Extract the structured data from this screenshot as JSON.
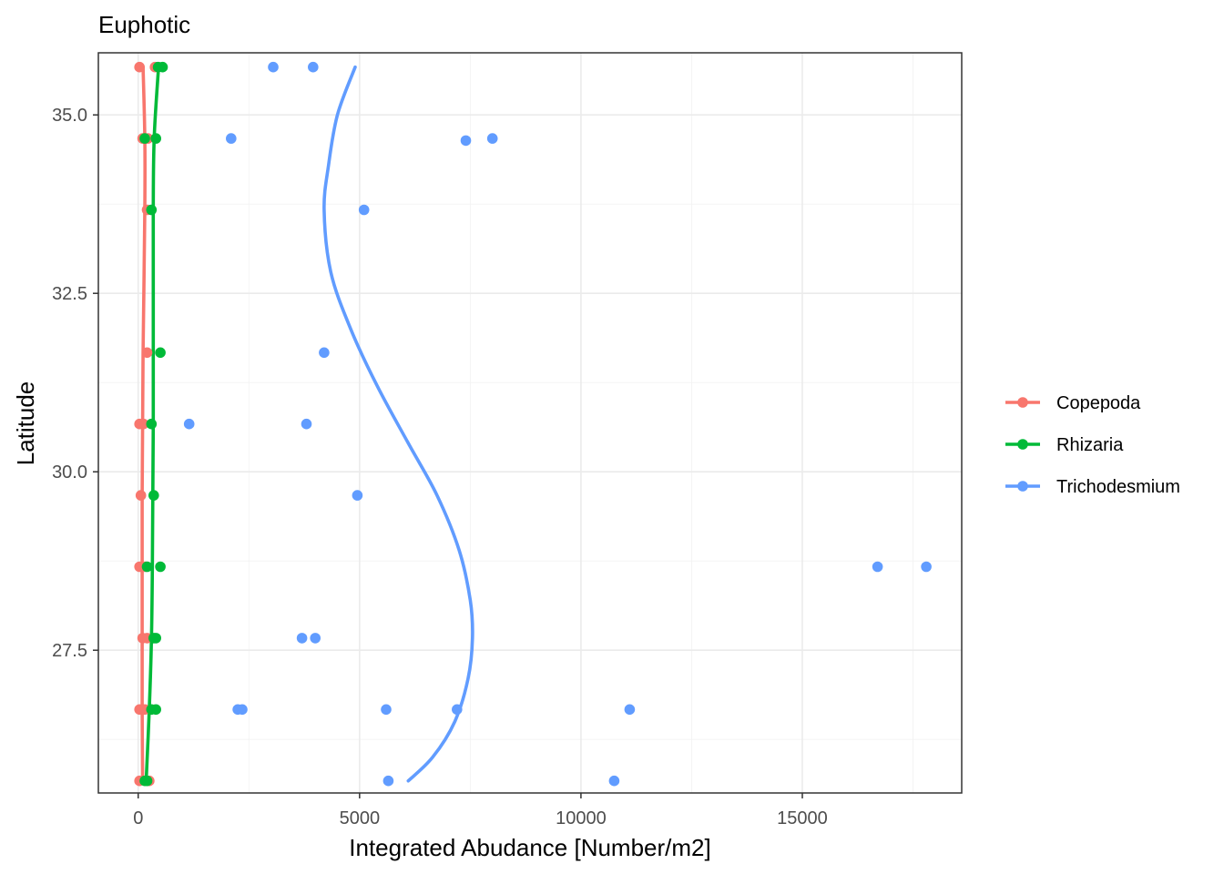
{
  "chart_data": {
    "type": "scatter",
    "title": "Euphotic",
    "xlabel": "Integrated Abudance [Number/m2]",
    "ylabel": "Latitude",
    "xlim": [
      -900,
      18600
    ],
    "ylim": [
      25.5,
      35.87
    ],
    "x_ticks": [
      0,
      5000,
      10000,
      15000
    ],
    "x_tick_labels": [
      "0",
      "5000",
      "10000",
      "15000"
    ],
    "y_ticks": [
      27.5,
      30.0,
      32.5,
      35.0
    ],
    "y_tick_labels": [
      "27.5",
      "30.0",
      "32.5",
      "35.0"
    ],
    "grid": true,
    "legend_position": "right",
    "series": [
      {
        "name": "Copepoda",
        "color": "#F8766D",
        "points": [
          [
            30,
            35.67
          ],
          [
            380,
            35.67
          ],
          [
            100,
            34.67
          ],
          [
            220,
            34.67
          ],
          [
            200,
            33.67
          ],
          [
            200,
            31.67
          ],
          [
            30,
            30.67
          ],
          [
            120,
            30.67
          ],
          [
            60,
            29.67
          ],
          [
            30,
            28.67
          ],
          [
            160,
            28.67
          ],
          [
            100,
            27.67
          ],
          [
            200,
            27.67
          ],
          [
            30,
            26.67
          ],
          [
            150,
            26.67
          ],
          [
            30,
            25.67
          ],
          [
            250,
            25.67
          ]
        ],
        "smooth": [
          [
            110,
            35.67
          ],
          [
            150,
            34.67
          ],
          [
            150,
            33.67
          ],
          [
            130,
            32.67
          ],
          [
            110,
            31.67
          ],
          [
            100,
            30.67
          ],
          [
            90,
            29.67
          ],
          [
            90,
            28.67
          ],
          [
            90,
            27.67
          ],
          [
            90,
            26.67
          ],
          [
            100,
            25.67
          ]
        ]
      },
      {
        "name": "Rhizaria",
        "color": "#00BA38",
        "points": [
          [
            450,
            35.67
          ],
          [
            550,
            35.67
          ],
          [
            150,
            34.67
          ],
          [
            400,
            34.67
          ],
          [
            300,
            33.67
          ],
          [
            500,
            31.67
          ],
          [
            300,
            30.67
          ],
          [
            350,
            29.67
          ],
          [
            200,
            28.67
          ],
          [
            500,
            28.67
          ],
          [
            350,
            27.67
          ],
          [
            400,
            27.67
          ],
          [
            300,
            26.67
          ],
          [
            400,
            26.67
          ],
          [
            150,
            25.67
          ],
          [
            200,
            25.67
          ]
        ],
        "smooth": [
          [
            460,
            35.67
          ],
          [
            360,
            34.67
          ],
          [
            340,
            33.67
          ],
          [
            340,
            32.67
          ],
          [
            340,
            31.67
          ],
          [
            340,
            30.67
          ],
          [
            330,
            29.67
          ],
          [
            320,
            28.67
          ],
          [
            300,
            27.67
          ],
          [
            250,
            26.67
          ],
          [
            180,
            25.67
          ]
        ]
      },
      {
        "name": "Trichodesmium",
        "color": "#619CFF",
        "points": [
          [
            3050,
            35.67
          ],
          [
            3950,
            35.67
          ],
          [
            2100,
            34.67
          ],
          [
            7400,
            34.64
          ],
          [
            8000,
            34.67
          ],
          [
            5100,
            33.67
          ],
          [
            4200,
            31.67
          ],
          [
            1150,
            30.67
          ],
          [
            3800,
            30.67
          ],
          [
            4950,
            29.67
          ],
          [
            16700,
            28.67
          ],
          [
            17800,
            28.67
          ],
          [
            3700,
            27.67
          ],
          [
            4000,
            27.67
          ],
          [
            2250,
            26.67
          ],
          [
            2350,
            26.67
          ],
          [
            5600,
            26.67
          ],
          [
            7200,
            26.67
          ],
          [
            11100,
            26.67
          ],
          [
            5650,
            25.67
          ],
          [
            10750,
            25.67
          ]
        ],
        "smooth": [
          [
            4900,
            35.67
          ],
          [
            4500,
            35.0
          ],
          [
            4300,
            34.3
          ],
          [
            4200,
            33.67
          ],
          [
            4350,
            32.8
          ],
          [
            4800,
            32.0
          ],
          [
            5400,
            31.2
          ],
          [
            6100,
            30.4
          ],
          [
            6750,
            29.67
          ],
          [
            7250,
            28.9
          ],
          [
            7500,
            28.2
          ],
          [
            7550,
            27.67
          ],
          [
            7450,
            27.1
          ],
          [
            7150,
            26.5
          ],
          [
            6650,
            26.0
          ],
          [
            6100,
            25.67
          ]
        ]
      }
    ]
  }
}
